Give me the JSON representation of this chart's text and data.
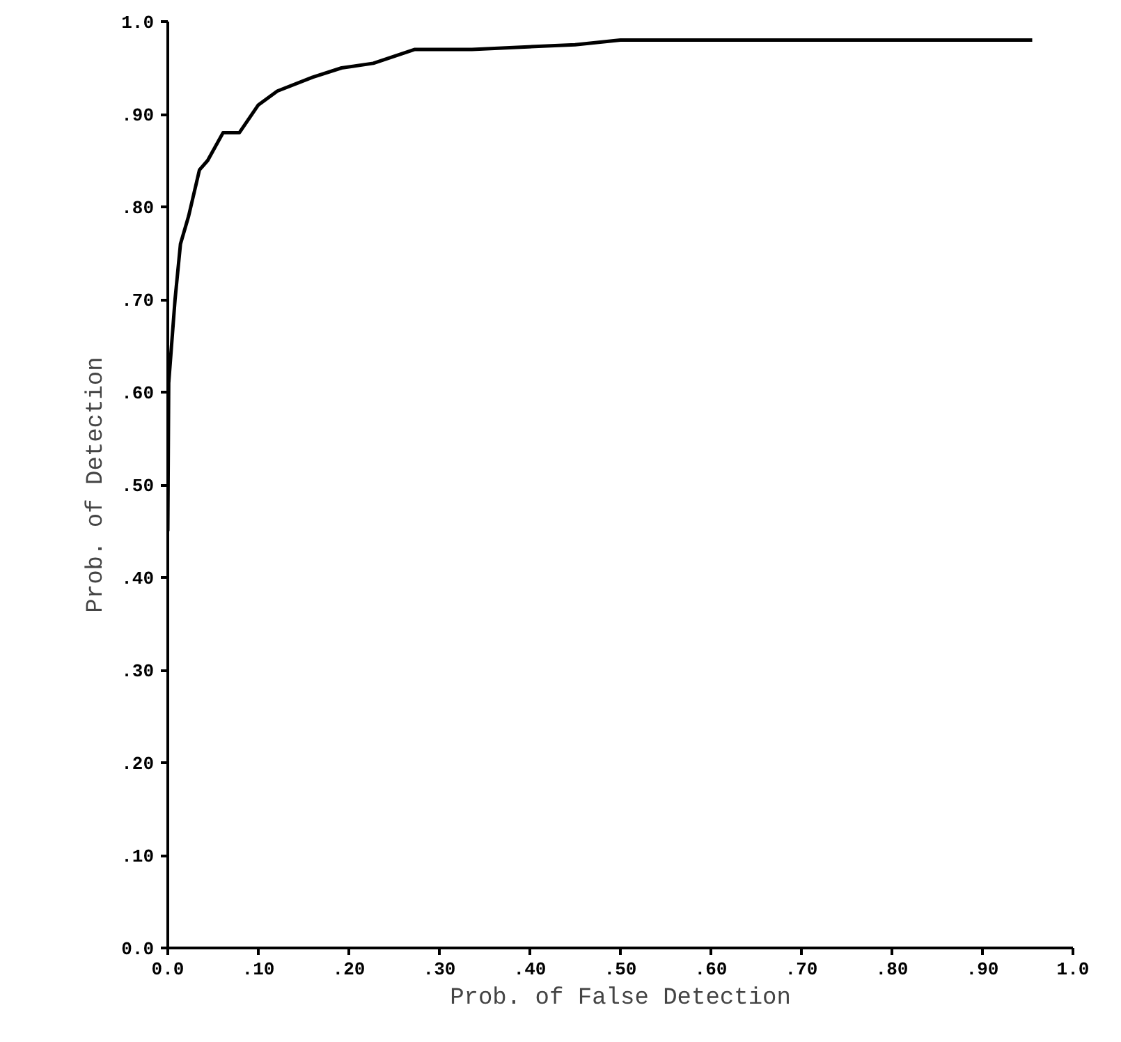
{
  "chart_data": {
    "type": "line",
    "xlabel": "Prob. of False Detection",
    "ylabel": "Prob. of Detection",
    "x": [
      0,
      0.001,
      0.008,
      0.014,
      0.023,
      0.035,
      0.044,
      0.061,
      0.079,
      0.1,
      0.121,
      0.16,
      0.192,
      0.227,
      0.273,
      0.336,
      0.45,
      0.5,
      0.955
    ],
    "series": [
      {
        "color": "#000000",
        "values": [
          0.45,
          0.61,
          0.7,
          0.76,
          0.79,
          0.84,
          0.85,
          0.88,
          0.88,
          0.91,
          0.925,
          0.94,
          0.95,
          0.955,
          0.97,
          0.97,
          0.975,
          0.98,
          0.98
        ]
      }
    ],
    "xlim": [
      0,
      1.0
    ],
    "ylim": [
      0,
      1.0
    ],
    "xticks": [
      {
        "value": 0,
        "label": "0.0"
      },
      {
        "value": 0.1,
        "label": ".10"
      },
      {
        "value": 0.2,
        "label": ".20"
      },
      {
        "value": 0.3,
        "label": ".30"
      },
      {
        "value": 0.4,
        "label": ".40"
      },
      {
        "value": 0.5,
        "label": ".50"
      },
      {
        "value": 0.6,
        "label": ".60"
      },
      {
        "value": 0.7,
        "label": ".70"
      },
      {
        "value": 0.8,
        "label": ".80"
      },
      {
        "value": 0.9,
        "label": ".90"
      },
      {
        "value": 1.0,
        "label": "1.0"
      }
    ],
    "yticks": [
      {
        "value": 0,
        "label": "0.0"
      },
      {
        "value": 0.1,
        "label": ".10"
      },
      {
        "value": 0.2,
        "label": ".20"
      },
      {
        "value": 0.3,
        "label": ".30"
      },
      {
        "value": 0.4,
        "label": ".40"
      },
      {
        "value": 0.5,
        "label": ".50"
      },
      {
        "value": 0.6,
        "label": ".60"
      },
      {
        "value": 0.7,
        "label": ".70"
      },
      {
        "value": 0.8,
        "label": ".80"
      },
      {
        "value": 0.9,
        "label": ".90"
      },
      {
        "value": 1.0,
        "label": "1.0"
      }
    ],
    "grid": false,
    "marker": "none",
    "line_style": "solid"
  }
}
